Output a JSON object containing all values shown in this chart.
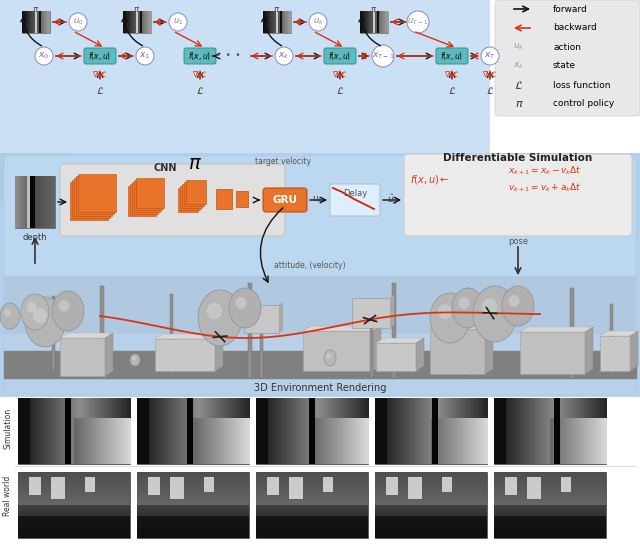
{
  "fig_w": 6.4,
  "fig_h": 5.46,
  "dpi": 100,
  "top_bg": "#cce0f5",
  "top_notch_bg": "#a8c8e8",
  "legend_bg": "#e8e8e8",
  "mid_bg": "#b8d4ee",
  "mid_inner_bg": "#c4dcf0",
  "diff_sim_bg": "#e8e8e8",
  "cnn_box_bg": "#e0e0e0",
  "orange": "#e8732a",
  "orange_dark": "#c05010",
  "teal": "#5abcbc",
  "teal_dark": "#3a9090",
  "fwd_color": "#111111",
  "bwd_color": "#dd3311",
  "circle_fc": "#ffffff",
  "circle_ec": "#8888bb",
  "pose_label": "pose",
  "depth_label": "depth",
  "cnn_label": "CNN",
  "gru_label": "GRU",
  "delay_label": "Delay",
  "diff_sim_label": "Differentiable Simulation",
  "env_label": "3D Environment Rendering",
  "pi_sym": "π",
  "target_vel": "target velocity",
  "attitude_vel": "attitude, (velocity)",
  "sim_label": "Simulation",
  "real_label": "Real world"
}
